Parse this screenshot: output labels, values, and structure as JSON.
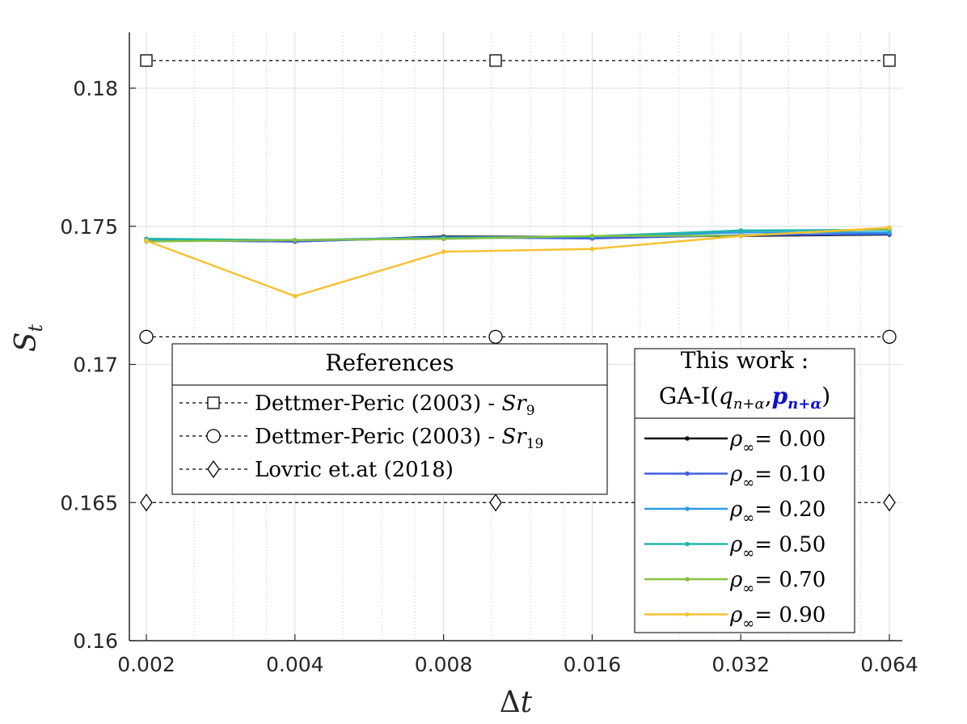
{
  "chart_data": {
    "type": "line",
    "xlabel": "Δt",
    "ylabel": "S_t",
    "xscale": "log2",
    "xlim": [
      0.002,
      0.064
    ],
    "ylim": [
      0.16,
      0.182
    ],
    "x_ticks": [
      "0.002",
      "0.004",
      "0.008",
      "0.016",
      "0.032",
      "0.064"
    ],
    "x_tick_values": [
      0.002,
      0.004,
      0.008,
      0.016,
      0.032,
      0.064
    ],
    "y_ticks": [
      "0.16",
      "0.165",
      "0.17",
      "0.175",
      "0.18"
    ],
    "y_tick_values": [
      0.16,
      0.165,
      0.17,
      0.175,
      0.18
    ],
    "grid": true,
    "x": [
      0.002,
      0.004,
      0.008,
      0.016,
      0.032,
      0.064
    ],
    "series": [
      {
        "name": "ρ∞ = 0.00",
        "rho_label": "0.00",
        "color": "#111111",
        "values": [
          0.1745,
          0.17445,
          0.17463,
          0.17462,
          0.17465,
          0.1747
        ]
      },
      {
        "name": "ρ∞ = 0.10",
        "rho_label": "0.10",
        "color": "#4060e0",
        "values": [
          0.1745,
          0.17445,
          0.1746,
          0.17456,
          0.17468,
          0.17472
        ]
      },
      {
        "name": "ρ∞ = 0.20",
        "rho_label": "0.20",
        "color": "#2a9de0",
        "values": [
          0.1745,
          0.1745,
          0.1746,
          0.17462,
          0.17478,
          0.17478
        ]
      },
      {
        "name": "ρ∞ = 0.50",
        "rho_label": "0.50",
        "color": "#20b8a8",
        "values": [
          0.17455,
          0.1745,
          0.17455,
          0.17464,
          0.17485,
          0.17487
        ]
      },
      {
        "name": "ρ∞ = 0.70",
        "rho_label": "0.70",
        "color": "#88c040",
        "values": [
          0.17445,
          0.1745,
          0.17455,
          0.17465,
          0.17466,
          0.17492
        ]
      },
      {
        "name": "ρ∞ = 0.90",
        "rho_label": "0.90",
        "color": "#f8c030",
        "values": [
          0.17448,
          0.17247,
          0.17408,
          0.17418,
          0.17465,
          0.17495
        ]
      }
    ],
    "references": [
      {
        "name": "Dettmer-Peric (2003) - Sr9",
        "label_main": "Dettmer-Peric (2003) - ",
        "label_sym": "Sr",
        "label_sub": "9",
        "marker": "square",
        "value": 0.181,
        "marker_x": [
          0.002,
          0.0102,
          0.064
        ]
      },
      {
        "name": "Dettmer-Peric (2003) - Sr19",
        "label_main": "Dettmer-Peric (2003) - ",
        "label_sym": "Sr",
        "label_sub": "19",
        "marker": "circle",
        "value": 0.171,
        "marker_x": [
          0.002,
          0.0102,
          0.064
        ]
      },
      {
        "name": "Lovric et.at (2018)",
        "label_main": "Lovric et.at (2018)",
        "label_sym": "",
        "label_sub": "",
        "marker": "diamond",
        "value": 0.165,
        "marker_x": [
          0.002,
          0.0102,
          0.064
        ]
      }
    ],
    "legend_refs_title": "References",
    "legend_work_title_line1": "This work :",
    "legend_work_title_line2_prefix": "GA-I(",
    "legend_work_title_line2_q": "q",
    "legend_work_title_line2_qsub": "n+α",
    "legend_work_title_line2_comma": ",",
    "legend_work_title_line2_p": "p",
    "legend_work_title_line2_psub": "n+α",
    "legend_work_title_line2_suffix": ")",
    "legend_rho_symbol": "ρ",
    "legend_rho_sub": "∞",
    "legend_rho_eq": "= ",
    "p_color": "#1010d0"
  }
}
